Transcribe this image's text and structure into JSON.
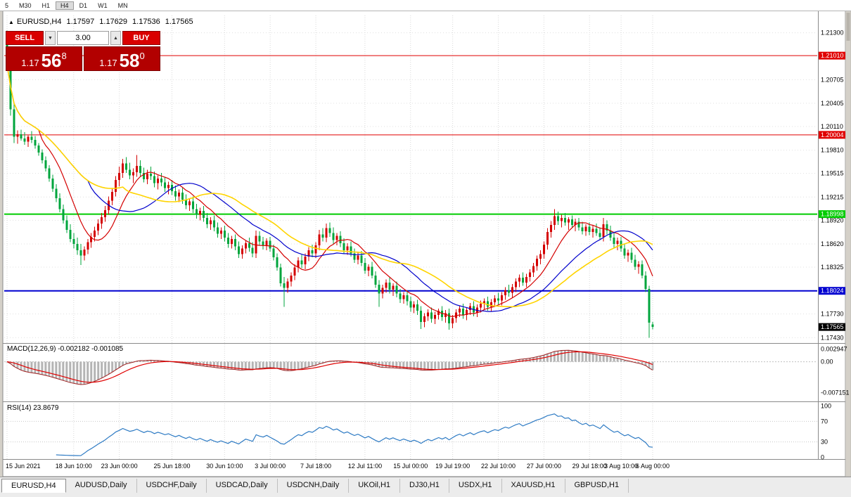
{
  "toolbar": {
    "timeframes": [
      "5",
      "M30",
      "H1",
      "H4",
      "D1",
      "W1",
      "MN"
    ],
    "active_timeframe": "H4"
  },
  "symbol_bar": {
    "symbol": "EURUSD,H4",
    "open": "1.17597",
    "high": "1.17629",
    "low": "1.17536",
    "close": "1.17565"
  },
  "trade_panel": {
    "sell_label": "SELL",
    "buy_label": "BUY",
    "volume": "3.00",
    "sell_price_prefix": "1.17",
    "sell_price_big": "56",
    "sell_price_sup": "8",
    "buy_price_prefix": "1.17",
    "buy_price_big": "58",
    "buy_price_sup": "0"
  },
  "price_axis": {
    "range": {
      "max": 1.2152,
      "min": 1.1737
    },
    "ticks": [
      {
        "v": 1.213,
        "label": "1.21300"
      },
      {
        "v": 1.20705,
        "label": "1.20705"
      },
      {
        "v": 1.20405,
        "label": "1.20405"
      },
      {
        "v": 1.2011,
        "label": "1.20110"
      },
      {
        "v": 1.1981,
        "label": "1.19810"
      },
      {
        "v": 1.19515,
        "label": "1.19515"
      },
      {
        "v": 1.19215,
        "label": "1.19215"
      },
      {
        "v": 1.1892,
        "label": "1.18920"
      },
      {
        "v": 1.1862,
        "label": "1.18620"
      },
      {
        "v": 1.18325,
        "label": "1.18325"
      },
      {
        "v": 1.1773,
        "label": "1.17730"
      },
      {
        "v": 1.1743,
        "label": "1.17430"
      }
    ]
  },
  "levels": [
    {
      "v": 1.2101,
      "label": "1.21010",
      "color": "#e00000",
      "width": 1
    },
    {
      "v": 1.20004,
      "label": "1.20004",
      "color": "#e00000",
      "width": 1
    },
    {
      "v": 1.18998,
      "label": "1.18998",
      "color": "#00cc00",
      "width": 2
    },
    {
      "v": 1.18024,
      "label": "1.18024",
      "color": "#0000d0",
      "width": 2
    }
  ],
  "current_price": {
    "v": 1.17565,
    "label": "1.17565",
    "bg": "#000000"
  },
  "chart_data": {
    "type": "candlestick",
    "title": "EURUSD,H4",
    "timeframe": "H4",
    "up_color": "#d40000",
    "down_color": "#00a53c",
    "ylim": [
      1.1737,
      1.2152
    ],
    "x_labels": [
      {
        "text": "15 Jun 2021",
        "i": 0
      },
      {
        "text": "18 Jun 10:00",
        "i": 19
      },
      {
        "text": "23 Jun 00:00",
        "i": 32
      },
      {
        "text": "25 Jun 18:00",
        "i": 47
      },
      {
        "text": "30 Jun 10:00",
        "i": 62
      },
      {
        "text": "3 Jul 00:00",
        "i": 75
      },
      {
        "text": "7 Jul 18:00",
        "i": 88
      },
      {
        "text": "12 Jul 11:00",
        "i": 102
      },
      {
        "text": "15 Jul 00:00",
        "i": 115
      },
      {
        "text": "19 Jul 19:00",
        "i": 127
      },
      {
        "text": "22 Jul 10:00",
        "i": 140
      },
      {
        "text": "27 Jul 00:00",
        "i": 153
      },
      {
        "text": "29 Jul 18:00",
        "i": 166
      },
      {
        "text": "3 Aug 10:00",
        "i": 175
      },
      {
        "text": "6 Aug 00:00",
        "i": 184
      }
    ],
    "moving_averages": [
      {
        "period": 10,
        "color": "#d40000"
      },
      {
        "period": 24,
        "color": "#0000cc"
      },
      {
        "period": 34,
        "color": "#ffd400"
      }
    ],
    "candles": [
      [
        1.2128,
        1.2133,
        1.2082,
        1.209
      ],
      [
        1.209,
        1.2095,
        1.2025,
        1.2033
      ],
      [
        1.2033,
        1.2042,
        1.199,
        1.1998
      ],
      [
        1.1998,
        1.2006,
        1.1989,
        1.2001
      ],
      [
        1.2001,
        1.2007,
        1.1993,
        1.1996
      ],
      [
        1.1996,
        1.2004,
        1.1988,
        1.1992
      ],
      [
        1.1992,
        1.2,
        1.1985,
        1.1998
      ],
      [
        1.1998,
        1.2005,
        1.199,
        1.1994
      ],
      [
        1.1994,
        1.1999,
        1.1983,
        1.1987
      ],
      [
        1.1987,
        1.199,
        1.1974,
        1.1978
      ],
      [
        1.1978,
        1.1982,
        1.1964,
        1.1968
      ],
      [
        1.1968,
        1.1973,
        1.1954,
        1.1958
      ],
      [
        1.1958,
        1.1962,
        1.1941,
        1.1945
      ],
      [
        1.1945,
        1.195,
        1.1928,
        1.1932
      ],
      [
        1.1932,
        1.1938,
        1.1915,
        1.192
      ],
      [
        1.192,
        1.1926,
        1.1902,
        1.1906
      ],
      [
        1.1906,
        1.1912,
        1.1888,
        1.1892
      ],
      [
        1.1892,
        1.1898,
        1.1876,
        1.188
      ],
      [
        1.188,
        1.1887,
        1.1864,
        1.1868
      ],
      [
        1.1868,
        1.1876,
        1.1856,
        1.1862
      ],
      [
        1.1862,
        1.187,
        1.1848,
        1.1854
      ],
      [
        1.1854,
        1.1862,
        1.1835,
        1.1847
      ],
      [
        1.1847,
        1.1859,
        1.1841,
        1.1855
      ],
      [
        1.1855,
        1.1868,
        1.1849,
        1.1864
      ],
      [
        1.1864,
        1.1876,
        1.1857,
        1.1871
      ],
      [
        1.1871,
        1.1884,
        1.1865,
        1.1879
      ],
      [
        1.1879,
        1.1893,
        1.1873,
        1.1888
      ],
      [
        1.1888,
        1.1901,
        1.1881,
        1.1896
      ],
      [
        1.1896,
        1.191,
        1.189,
        1.1905
      ],
      [
        1.1905,
        1.1922,
        1.1899,
        1.1917
      ],
      [
        1.1917,
        1.1933,
        1.1911,
        1.1928
      ],
      [
        1.1928,
        1.1948,
        1.1922,
        1.1943
      ],
      [
        1.1943,
        1.196,
        1.1935,
        1.1952
      ],
      [
        1.1952,
        1.197,
        1.1946,
        1.1964
      ],
      [
        1.1964,
        1.1972,
        1.1952,
        1.1956
      ],
      [
        1.1956,
        1.1965,
        1.1944,
        1.1949
      ],
      [
        1.1949,
        1.1958,
        1.1939,
        1.1953
      ],
      [
        1.1953,
        1.1975,
        1.1947,
        1.1961
      ],
      [
        1.1961,
        1.1968,
        1.1948,
        1.1952
      ],
      [
        1.1952,
        1.1959,
        1.194,
        1.1944
      ],
      [
        1.1944,
        1.1956,
        1.1938,
        1.1951
      ],
      [
        1.1951,
        1.196,
        1.1943,
        1.1948
      ],
      [
        1.1948,
        1.1954,
        1.1934,
        1.1939
      ],
      [
        1.1939,
        1.1949,
        1.1931,
        1.1945
      ],
      [
        1.1945,
        1.1952,
        1.1935,
        1.194
      ],
      [
        1.194,
        1.1947,
        1.1928,
        1.1933
      ],
      [
        1.1933,
        1.1941,
        1.1925,
        1.1937
      ],
      [
        1.1937,
        1.1943,
        1.1924,
        1.1929
      ],
      [
        1.1929,
        1.1936,
        1.1917,
        1.1922
      ],
      [
        1.1922,
        1.1931,
        1.1915,
        1.1927
      ],
      [
        1.1927,
        1.1933,
        1.1913,
        1.1918
      ],
      [
        1.1918,
        1.1925,
        1.1906,
        1.1911
      ],
      [
        1.1911,
        1.192,
        1.1904,
        1.1916
      ],
      [
        1.1916,
        1.1922,
        1.1901,
        1.1906
      ],
      [
        1.1906,
        1.1913,
        1.1894,
        1.1899
      ],
      [
        1.1899,
        1.1908,
        1.1892,
        1.1904
      ],
      [
        1.1904,
        1.191,
        1.189,
        1.1895
      ],
      [
        1.1895,
        1.1901,
        1.1882,
        1.1887
      ],
      [
        1.1887,
        1.1896,
        1.188,
        1.1892
      ],
      [
        1.1892,
        1.1898,
        1.1878,
        1.1883
      ],
      [
        1.1883,
        1.1889,
        1.187,
        1.1875
      ],
      [
        1.1875,
        1.1883,
        1.1868,
        1.1879
      ],
      [
        1.1879,
        1.1885,
        1.1865,
        1.187
      ],
      [
        1.187,
        1.1876,
        1.1857,
        1.1862
      ],
      [
        1.1862,
        1.1872,
        1.1856,
        1.1868
      ],
      [
        1.1868,
        1.1874,
        1.1854,
        1.1859
      ],
      [
        1.1859,
        1.1865,
        1.1844,
        1.1849
      ],
      [
        1.1849,
        1.186,
        1.1843,
        1.1856
      ],
      [
        1.1856,
        1.1867,
        1.185,
        1.1863
      ],
      [
        1.1863,
        1.187,
        1.1852,
        1.1857
      ],
      [
        1.1857,
        1.1864,
        1.1845,
        1.185
      ],
      [
        1.185,
        1.1879,
        1.1844,
        1.1872
      ],
      [
        1.1872,
        1.1878,
        1.186,
        1.1865
      ],
      [
        1.1865,
        1.1871,
        1.1855,
        1.186
      ],
      [
        1.186,
        1.1869,
        1.1854,
        1.1866
      ],
      [
        1.1866,
        1.1871,
        1.1852,
        1.1856
      ],
      [
        1.1856,
        1.1861,
        1.1841,
        1.1845
      ],
      [
        1.1845,
        1.185,
        1.1828,
        1.1832
      ],
      [
        1.1832,
        1.1837,
        1.1808,
        1.1812
      ],
      [
        1.1812,
        1.182,
        1.1782,
        1.1806
      ],
      [
        1.1806,
        1.1818,
        1.18,
        1.1814
      ],
      [
        1.1814,
        1.1826,
        1.1808,
        1.1822
      ],
      [
        1.1822,
        1.1836,
        1.1816,
        1.1832
      ],
      [
        1.1832,
        1.1845,
        1.1826,
        1.1841
      ],
      [
        1.1841,
        1.1848,
        1.1831,
        1.1836
      ],
      [
        1.1836,
        1.185,
        1.183,
        1.1846
      ],
      [
        1.1846,
        1.1858,
        1.184,
        1.1854
      ],
      [
        1.1854,
        1.1861,
        1.1845,
        1.185
      ],
      [
        1.185,
        1.1864,
        1.1844,
        1.186
      ],
      [
        1.186,
        1.188,
        1.1854,
        1.1874
      ],
      [
        1.1874,
        1.1882,
        1.1865,
        1.187
      ],
      [
        1.187,
        1.1888,
        1.1864,
        1.1882
      ],
      [
        1.1882,
        1.1889,
        1.1871,
        1.1876
      ],
      [
        1.1876,
        1.1883,
        1.1862,
        1.1867
      ],
      [
        1.1867,
        1.1876,
        1.186,
        1.1872
      ],
      [
        1.1872,
        1.1878,
        1.1858,
        1.1863
      ],
      [
        1.1863,
        1.1869,
        1.185,
        1.1854
      ],
      [
        1.1854,
        1.1863,
        1.1848,
        1.1859
      ],
      [
        1.1859,
        1.1865,
        1.1846,
        1.185
      ],
      [
        1.185,
        1.1856,
        1.1838,
        1.1842
      ],
      [
        1.1842,
        1.1851,
        1.1836,
        1.1847
      ],
      [
        1.1847,
        1.1853,
        1.1834,
        1.1838
      ],
      [
        1.1838,
        1.1844,
        1.1824,
        1.1828
      ],
      [
        1.1828,
        1.1836,
        1.1821,
        1.1833
      ],
      [
        1.1833,
        1.1839,
        1.1818,
        1.1822
      ],
      [
        1.1822,
        1.1827,
        1.1806,
        1.181
      ],
      [
        1.181,
        1.1816,
        1.1782,
        1.1799
      ],
      [
        1.1799,
        1.181,
        1.1793,
        1.1806
      ],
      [
        1.1806,
        1.1817,
        1.18,
        1.1813
      ],
      [
        1.1813,
        1.1819,
        1.1799,
        1.1804
      ],
      [
        1.1804,
        1.1812,
        1.1796,
        1.1809
      ],
      [
        1.1809,
        1.1814,
        1.1794,
        1.1799
      ],
      [
        1.1799,
        1.1805,
        1.1787,
        1.1792
      ],
      [
        1.1792,
        1.1801,
        1.1786,
        1.1797
      ],
      [
        1.1797,
        1.1803,
        1.1784,
        1.1789
      ],
      [
        1.1789,
        1.1795,
        1.1776,
        1.1781
      ],
      [
        1.1781,
        1.1789,
        1.1774,
        1.1785
      ],
      [
        1.1785,
        1.1791,
        1.1772,
        1.1777
      ],
      [
        1.1777,
        1.1783,
        1.1754,
        1.1763
      ],
      [
        1.1763,
        1.1774,
        1.1756,
        1.177
      ],
      [
        1.177,
        1.1779,
        1.1764,
        1.1775
      ],
      [
        1.1775,
        1.1781,
        1.1762,
        1.1767
      ],
      [
        1.1767,
        1.1776,
        1.176,
        1.1772
      ],
      [
        1.1772,
        1.178,
        1.1766,
        1.1777
      ],
      [
        1.1777,
        1.1783,
        1.1764,
        1.1769
      ],
      [
        1.1769,
        1.1778,
        1.1762,
        1.1774
      ],
      [
        1.1774,
        1.178,
        1.1753,
        1.1761
      ],
      [
        1.1761,
        1.1772,
        1.1755,
        1.1768
      ],
      [
        1.1768,
        1.1779,
        1.1762,
        1.1775
      ],
      [
        1.1775,
        1.1784,
        1.1769,
        1.178
      ],
      [
        1.178,
        1.1786,
        1.1767,
        1.1772
      ],
      [
        1.1772,
        1.1781,
        1.1765,
        1.1778
      ],
      [
        1.1778,
        1.1787,
        1.1772,
        1.1783
      ],
      [
        1.1783,
        1.1789,
        1.177,
        1.1775
      ],
      [
        1.1775,
        1.1785,
        1.1769,
        1.1781
      ],
      [
        1.1781,
        1.179,
        1.1775,
        1.1786
      ],
      [
        1.1786,
        1.1793,
        1.1778,
        1.1789
      ],
      [
        1.1789,
        1.1795,
        1.1777,
        1.1782
      ],
      [
        1.1782,
        1.1792,
        1.1776,
        1.1788
      ],
      [
        1.1788,
        1.1797,
        1.1782,
        1.1793
      ],
      [
        1.1793,
        1.18,
        1.1785,
        1.179
      ],
      [
        1.179,
        1.1801,
        1.1784,
        1.1797
      ],
      [
        1.1797,
        1.1807,
        1.1791,
        1.1803
      ],
      [
        1.1803,
        1.181,
        1.1795,
        1.18
      ],
      [
        1.18,
        1.1811,
        1.1794,
        1.1807
      ],
      [
        1.1807,
        1.1818,
        1.1801,
        1.1814
      ],
      [
        1.1814,
        1.1823,
        1.1807,
        1.1819
      ],
      [
        1.1819,
        1.1826,
        1.1809,
        1.1813
      ],
      [
        1.1813,
        1.1824,
        1.1807,
        1.182
      ],
      [
        1.182,
        1.183,
        1.1814,
        1.1826
      ],
      [
        1.1826,
        1.1838,
        1.182,
        1.1834
      ],
      [
        1.1834,
        1.1847,
        1.1828,
        1.1843
      ],
      [
        1.1843,
        1.1854,
        1.1836,
        1.1849
      ],
      [
        1.1849,
        1.1865,
        1.1843,
        1.1861
      ],
      [
        1.1861,
        1.1882,
        1.1855,
        1.1877
      ],
      [
        1.1877,
        1.1891,
        1.187,
        1.1886
      ],
      [
        1.1886,
        1.1906,
        1.188,
        1.1897
      ],
      [
        1.1897,
        1.1903,
        1.1886,
        1.1891
      ],
      [
        1.1891,
        1.1899,
        1.1883,
        1.1895
      ],
      [
        1.1895,
        1.1901,
        1.1885,
        1.1889
      ],
      [
        1.1889,
        1.1896,
        1.188,
        1.1893
      ],
      [
        1.1893,
        1.1898,
        1.1882,
        1.1886
      ],
      [
        1.1886,
        1.1894,
        1.1878,
        1.189
      ],
      [
        1.189,
        1.1895,
        1.1879,
        1.1883
      ],
      [
        1.1883,
        1.189,
        1.1874,
        1.1878
      ],
      [
        1.1878,
        1.1887,
        1.1872,
        1.1884
      ],
      [
        1.1884,
        1.1889,
        1.1873,
        1.1877
      ],
      [
        1.1877,
        1.1885,
        1.187,
        1.1881
      ],
      [
        1.1881,
        1.1888,
        1.1872,
        1.1876
      ],
      [
        1.1876,
        1.1883,
        1.1867,
        1.1871
      ],
      [
        1.1871,
        1.1895,
        1.1865,
        1.1887
      ],
      [
        1.1887,
        1.1892,
        1.1874,
        1.1879
      ],
      [
        1.1879,
        1.1885,
        1.1866,
        1.187
      ],
      [
        1.187,
        1.1876,
        1.1857,
        1.1862
      ],
      [
        1.1862,
        1.187,
        1.1854,
        1.1866
      ],
      [
        1.1866,
        1.1871,
        1.1852,
        1.1856
      ],
      [
        1.1856,
        1.1862,
        1.1843,
        1.1847
      ],
      [
        1.1847,
        1.1855,
        1.1839,
        1.1851
      ],
      [
        1.1851,
        1.1857,
        1.1838,
        1.1842
      ],
      [
        1.1842,
        1.1848,
        1.1829,
        1.1833
      ],
      [
        1.1833,
        1.184,
        1.1824,
        1.1836
      ],
      [
        1.1836,
        1.1841,
        1.1818,
        1.1822
      ],
      [
        1.1822,
        1.1827,
        1.1801,
        1.1805
      ],
      [
        1.1805,
        1.1809,
        1.1743,
        1.1762
      ],
      [
        1.17597,
        1.17629,
        1.17536,
        1.17565
      ]
    ]
  },
  "macd_panel": {
    "label": "MACD(12,26,9) -0.002182 -0.001085",
    "fast": 12,
    "slow": 26,
    "signal": 9,
    "value": "-0.002182",
    "signal_value": "-0.001085",
    "range": {
      "max": 0.004,
      "min": -0.009
    },
    "ticks": [
      {
        "v": 0.002947,
        "label": "0.002947"
      },
      {
        "v": 0,
        "label": "0.00"
      },
      {
        "v": -0.007151,
        "label": "-0.007151"
      }
    ],
    "hist_color": "#b4b4b4",
    "macd_color": "#9c1c1c",
    "signal_color": "#e00000"
  },
  "rsi_panel": {
    "label": "RSI(14) 23.8679",
    "period": 14,
    "value": "23.8679",
    "range": {
      "max": 106,
      "min": -2
    },
    "ticks": [
      {
        "v": 100,
        "label": "100"
      },
      {
        "v": 70,
        "label": "70"
      },
      {
        "v": 30,
        "label": "30"
      },
      {
        "v": 0,
        "label": "0"
      }
    ],
    "levels": [
      70,
      30
    ],
    "line_color": "#2e7bc4"
  },
  "tabs": {
    "items": [
      {
        "label": "EURUSD,H4",
        "active": true
      },
      {
        "label": "AUDUSD,Daily",
        "active": false
      },
      {
        "label": "USDCHF,Daily",
        "active": false
      },
      {
        "label": "USDCAD,Daily",
        "active": false
      },
      {
        "label": "USDCNH,Daily",
        "active": false
      },
      {
        "label": "UKOil,H1",
        "active": false
      },
      {
        "label": "DJ30,H1",
        "active": false
      },
      {
        "label": "USDX,H1",
        "active": false
      },
      {
        "label": "XAUUSD,H1",
        "active": false
      },
      {
        "label": "GBPUSD,H1",
        "active": false
      }
    ]
  }
}
